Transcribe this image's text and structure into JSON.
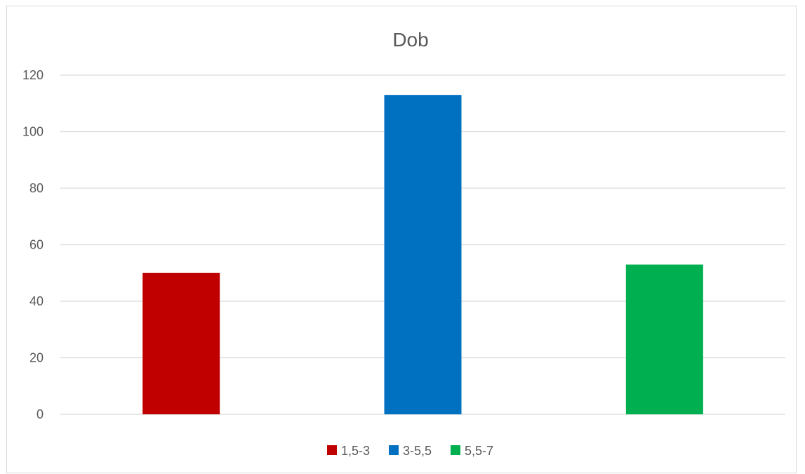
{
  "chart_data": {
    "type": "bar",
    "title": "Dob",
    "categories": [
      "1,5-3",
      "3-5,5",
      "5,5-7"
    ],
    "values": [
      50,
      113,
      53
    ],
    "colors": [
      "#c00000",
      "#0070c0",
      "#00b050"
    ],
    "ylim": [
      0,
      120
    ],
    "yticks": [
      0,
      20,
      40,
      60,
      80,
      100,
      120
    ],
    "grid": true,
    "legend": "bottom"
  }
}
